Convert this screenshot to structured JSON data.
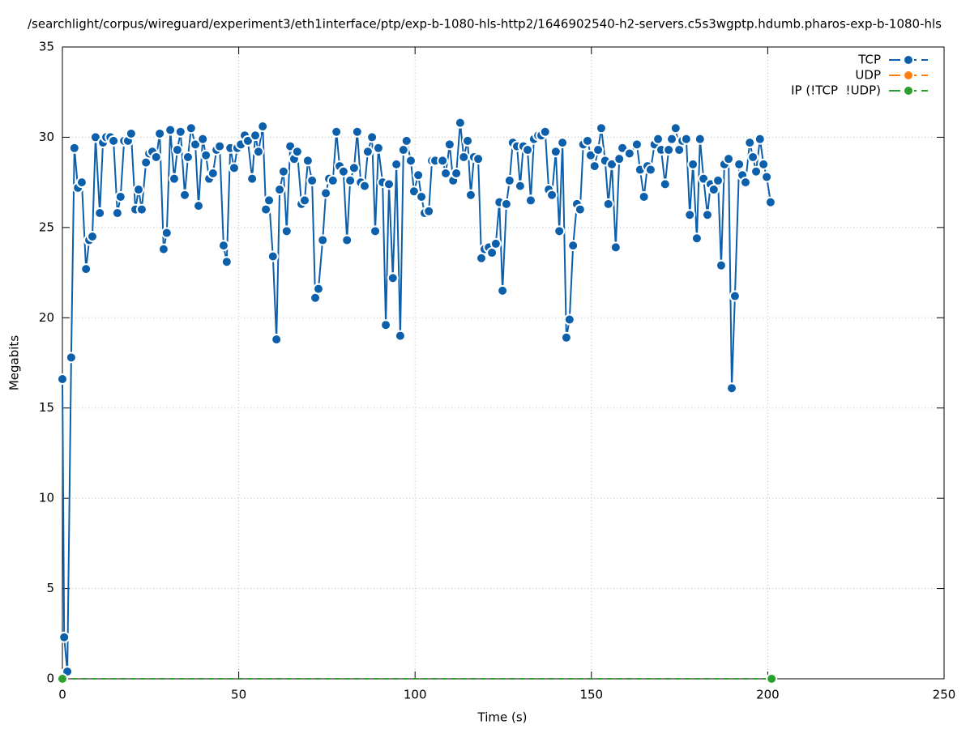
{
  "chart_data": {
    "type": "line",
    "title": "/searchlight/corpus/wireguard/experiment3/eth1interface/ptp/exp-b-1080-hls-http2/1646902540-h2-servers.c5s3wgptp.hdumb.pharos-exp-b-1080-hls",
    "x_label": "Time (s)",
    "y_label": "Megabits",
    "xlim": [
      0,
      250
    ],
    "xticks": [
      0,
      50,
      100,
      150,
      200,
      250
    ],
    "ylim": [
      0,
      35
    ],
    "yticks": [
      0,
      5,
      10,
      15,
      20,
      25,
      30,
      35
    ],
    "grid": true,
    "legend": "top-right",
    "series": [
      {
        "name": "TCP",
        "color": "#0c5fab",
        "x": [
          0,
          0.5,
          1.4,
          2.5,
          3.4,
          4.4,
          5.5,
          6.7,
          7.6,
          8.5,
          9.4,
          10.6,
          11.5,
          12.4,
          13.6,
          14.5,
          15.6,
          16.5,
          17.5,
          18.6,
          19.5,
          20.7,
          21.6,
          22.5,
          23.7,
          24.6,
          25.5,
          26.6,
          27.6,
          28.7,
          29.6,
          30.6,
          31.7,
          32.6,
          33.5,
          34.7,
          35.6,
          36.5,
          37.7,
          38.6,
          39.8,
          40.7,
          41.6,
          42.7,
          43.7,
          44.6,
          45.7,
          46.6,
          47.6,
          48.7,
          49.6,
          50.6,
          51.7,
          52.6,
          53.8,
          54.7,
          55.6,
          56.8,
          57.7,
          58.6,
          59.7,
          60.7,
          61.6,
          62.7,
          63.6,
          64.6,
          65.7,
          66.6,
          67.8,
          68.7,
          69.6,
          70.8,
          71.7,
          72.6,
          73.8,
          74.7,
          75.6,
          76.7,
          77.7,
          78.6,
          79.7,
          80.7,
          81.6,
          82.7,
          83.6,
          84.6,
          85.7,
          86.6,
          87.8,
          88.7,
          89.6,
          90.8,
          91.7,
          92.6,
          93.7,
          94.7,
          95.8,
          96.7,
          97.6,
          98.8,
          99.7,
          100.9,
          101.8,
          102.7,
          103.9,
          104.8,
          105.7,
          107.8,
          108.7,
          109.8,
          110.8,
          111.7,
          112.8,
          113.8,
          114.9,
          115.8,
          116.7,
          117.9,
          118.8,
          119.7,
          120.9,
          121.8,
          122.9,
          123.9,
          124.8,
          125.9,
          126.8,
          127.7,
          128.9,
          129.8,
          130.7,
          131.9,
          132.8,
          133.7,
          134.9,
          135.8,
          136.9,
          137.9,
          138.8,
          139.9,
          140.9,
          141.8,
          142.9,
          143.8,
          144.8,
          145.9,
          146.8,
          147.7,
          148.9,
          149.8,
          150.9,
          151.9,
          152.8,
          153.9,
          154.8,
          155.8,
          156.9,
          157.9,
          158.8,
          160.8,
          162.9,
          163.8,
          164.9,
          165.9,
          166.8,
          167.9,
          168.9,
          169.8,
          170.9,
          171.9,
          172.8,
          173.9,
          174.9,
          175.8,
          176.9,
          177.9,
          178.8,
          179.9,
          180.8,
          181.8,
          182.9,
          183.8,
          184.7,
          185.9,
          186.8,
          187.7,
          188.9,
          189.8,
          190.7,
          191.9,
          192.8,
          193.7,
          194.9,
          195.8,
          196.7,
          197.8,
          198.8,
          199.7,
          200.8
        ],
        "values": [
          16.6,
          2.3,
          0.4,
          17.8,
          29.4,
          27.2,
          27.5,
          22.7,
          24.3,
          24.5,
          30.0,
          25.8,
          29.7,
          30.0,
          30.0,
          29.8,
          25.8,
          26.7,
          29.8,
          29.8,
          30.2,
          26.0,
          27.1,
          26.0,
          28.6,
          29.1,
          29.2,
          28.9,
          30.2,
          23.8,
          24.7,
          30.4,
          27.7,
          29.3,
          30.3,
          26.8,
          28.9,
          30.5,
          29.6,
          26.2,
          29.9,
          29.0,
          27.7,
          28.0,
          29.3,
          29.5,
          24.0,
          23.1,
          29.4,
          28.3,
          29.4,
          29.6,
          30.1,
          29.8,
          27.7,
          30.1,
          29.2,
          30.6,
          26.0,
          26.5,
          23.4,
          18.8,
          27.1,
          28.1,
          24.8,
          29.5,
          28.8,
          29.2,
          26.3,
          26.5,
          28.7,
          27.6,
          21.1,
          21.6,
          24.3,
          26.9,
          27.7,
          27.6,
          30.3,
          28.4,
          28.1,
          24.3,
          27.6,
          28.3,
          30.3,
          27.5,
          27.3,
          29.2,
          30.0,
          24.8,
          29.4,
          27.5,
          19.6,
          27.4,
          22.2,
          28.5,
          19.0,
          29.3,
          29.8,
          28.7,
          27.0,
          27.9,
          26.7,
          25.8,
          25.9,
          28.7,
          28.7,
          28.7,
          28.0,
          29.6,
          27.6,
          28.0,
          30.8,
          28.9,
          29.8,
          26.8,
          28.9,
          28.8,
          23.3,
          23.8,
          23.9,
          23.6,
          24.1,
          26.4,
          21.5,
          26.3,
          27.6,
          29.7,
          29.5,
          27.3,
          29.5,
          29.3,
          26.5,
          29.9,
          30.1,
          30.1,
          30.3,
          27.1,
          26.8,
          29.2,
          24.8,
          29.7,
          18.9,
          19.9,
          24.0,
          26.3,
          26.0,
          29.6,
          29.8,
          29.0,
          28.4,
          29.3,
          30.5,
          28.7,
          26.3,
          28.5,
          23.9,
          28.8,
          29.4,
          29.1,
          29.6,
          28.2,
          26.7,
          28.4,
          28.2,
          29.6,
          29.9,
          29.3,
          27.4,
          29.3,
          29.9,
          30.5,
          29.3,
          29.8,
          29.9,
          25.7,
          28.5,
          24.4,
          29.9,
          27.7,
          25.7,
          27.4,
          27.1,
          27.6,
          22.9,
          28.5,
          28.8,
          16.1,
          21.2,
          28.5,
          27.9,
          27.5,
          29.7,
          28.9,
          28.1,
          29.9,
          28.5,
          27.8,
          26.4
        ]
      },
      {
        "name": "UDP",
        "color": "#ff7f0e",
        "x": [],
        "values": []
      },
      {
        "name": "IP (!TCP  !UDP)",
        "color": "#2ca02c",
        "x": [
          0,
          201.1
        ],
        "values": [
          0,
          0
        ]
      }
    ]
  }
}
